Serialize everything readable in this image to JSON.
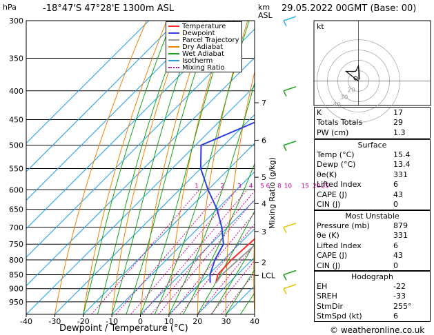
{
  "header": {
    "hpa_label": "hPa",
    "location": "-18°47'S  47°28'E  1300m  ASL",
    "km_label": "km",
    "asl_label": "ASL",
    "datetime": "29.05.2022  00GMT  (Base: 00)"
  },
  "x_axis_title": "Dewpoint / Temperature (°C)",
  "mixing_ratio_title": "Mixing Ratio (g/kg)",
  "legend": [
    {
      "label": "Temperature",
      "color": "#ff2a2a",
      "dash": ""
    },
    {
      "label": "Dewpoint",
      "color": "#2b3fe0",
      "dash": ""
    },
    {
      "label": "Parcel Trajectory",
      "color": "#999999",
      "dash": ""
    },
    {
      "label": "Dry Adiabat",
      "color": "#f08000",
      "dash": ""
    },
    {
      "label": "Wet Adiabat",
      "color": "#18a018",
      "dash": ""
    },
    {
      "label": "Isotherm",
      "color": "#1aa0e6",
      "dash": ""
    },
    {
      "label": "Mixing Ratio",
      "color": "#d0009a",
      "dash": "2,2"
    }
  ],
  "chart_data": {
    "type": "line",
    "pressure_levels": [
      300,
      350,
      400,
      450,
      500,
      550,
      600,
      650,
      700,
      750,
      800,
      850,
      900,
      950
    ],
    "temperature_ticks": [
      -40,
      -30,
      -20,
      -10,
      0,
      10,
      20,
      30,
      40
    ],
    "xlim": [
      -40,
      40
    ],
    "ylim_hpa": [
      1000,
      300
    ],
    "km_ticks": [
      {
        "km": "7",
        "p": 420
      },
      {
        "km": "6",
        "p": 490
      },
      {
        "km": "5",
        "p": 570
      },
      {
        "km": "4",
        "p": 635
      },
      {
        "km": "3",
        "p": 712
      },
      {
        "km": "2",
        "p": 808
      },
      {
        "km": "LCL",
        "p": 852
      }
    ],
    "mixing_ratio_labels": [
      {
        "label": "1",
        "t": -24
      },
      {
        "label": "2",
        "t": -15
      },
      {
        "label": "3",
        "t": -9
      },
      {
        "label": "4",
        "t": -5
      },
      {
        "label": "5",
        "t": -1
      },
      {
        "label": "6",
        "t": 1
      },
      {
        "label": "8",
        "t": 5
      },
      {
        "label": "10",
        "t": 8
      },
      {
        "label": "15",
        "t": 14
      },
      {
        "label": "20",
        "t": 18
      },
      {
        "label": "25",
        "t": 21
      }
    ],
    "series": [
      {
        "name": "Temperature",
        "color": "#ff2a2a",
        "points": [
          [
            15.4,
            879
          ],
          [
            13.2,
            850
          ],
          [
            12.8,
            800
          ],
          [
            14.0,
            700
          ],
          [
            17.0,
            600
          ],
          [
            20.0,
            500
          ],
          [
            17.0,
            450
          ],
          [
            8.0,
            400
          ],
          [
            4.0,
            350
          ],
          [
            3.0,
            300
          ]
        ]
      },
      {
        "name": "Dewpoint",
        "color": "#2b3fe0",
        "points": [
          [
            13.4,
            879
          ],
          [
            10.5,
            850
          ],
          [
            7.0,
            800
          ],
          [
            4.5,
            750
          ],
          [
            -2.0,
            700
          ],
          [
            -10.0,
            650
          ],
          [
            -20.0,
            600
          ],
          [
            -30.0,
            550
          ],
          [
            -38.0,
            500
          ],
          [
            -26.0,
            450
          ],
          [
            -12.0,
            400
          ],
          [
            -8.0,
            350
          ],
          [
            -3.0,
            300
          ]
        ]
      },
      {
        "name": "Parcel Trajectory",
        "color": "#999999",
        "points": [
          [
            15.4,
            879
          ],
          [
            14.6,
            850
          ],
          [
            15.2,
            800
          ],
          [
            15.8,
            750
          ],
          [
            16.0,
            700
          ],
          [
            16.5,
            650
          ],
          [
            15.0,
            600
          ],
          [
            12.0,
            550
          ],
          [
            9.0,
            500
          ],
          [
            6.0,
            450
          ],
          [
            3.0,
            400
          ],
          [
            0.0,
            350
          ],
          [
            -3.0,
            300
          ]
        ]
      }
    ]
  },
  "hodograph": {
    "label": "kt",
    "ring_labels": [
      "40",
      "30",
      "20"
    ]
  },
  "indices_block1": [
    {
      "label": "K",
      "value": "17"
    },
    {
      "label": "Totals Totals",
      "value": "29"
    },
    {
      "label": "PW (cm)",
      "value": "1.3"
    }
  ],
  "surface": {
    "title": "Surface",
    "rows": [
      {
        "label": "Temp (°C)",
        "value": "15.4"
      },
      {
        "label": "Dewp (°C)",
        "value": "13.4"
      },
      {
        "label": "θe(K)",
        "value": "331"
      },
      {
        "label": "Lifted Index",
        "value": "6"
      },
      {
        "label": "CAPE (J)",
        "value": "43"
      },
      {
        "label": "CIN (J)",
        "value": "0"
      }
    ]
  },
  "most_unstable": {
    "title": "Most Unstable",
    "rows": [
      {
        "label": "Pressure (mb)",
        "value": "879"
      },
      {
        "label": "θe (K)",
        "value": "331"
      },
      {
        "label": "Lifted Index",
        "value": "6"
      },
      {
        "label": "CAPE (J)",
        "value": "43"
      },
      {
        "label": "CIN (J)",
        "value": "0"
      }
    ]
  },
  "hodograph_table": {
    "title": "Hodograph",
    "rows": [
      {
        "label": "EH",
        "value": "-22"
      },
      {
        "label": "SREH",
        "value": "-33"
      },
      {
        "label": "StmDir",
        "value": "255°"
      },
      {
        "label": "StmSpd (kt)",
        "value": "6"
      }
    ]
  },
  "credit": "© weatheronline.co.uk"
}
